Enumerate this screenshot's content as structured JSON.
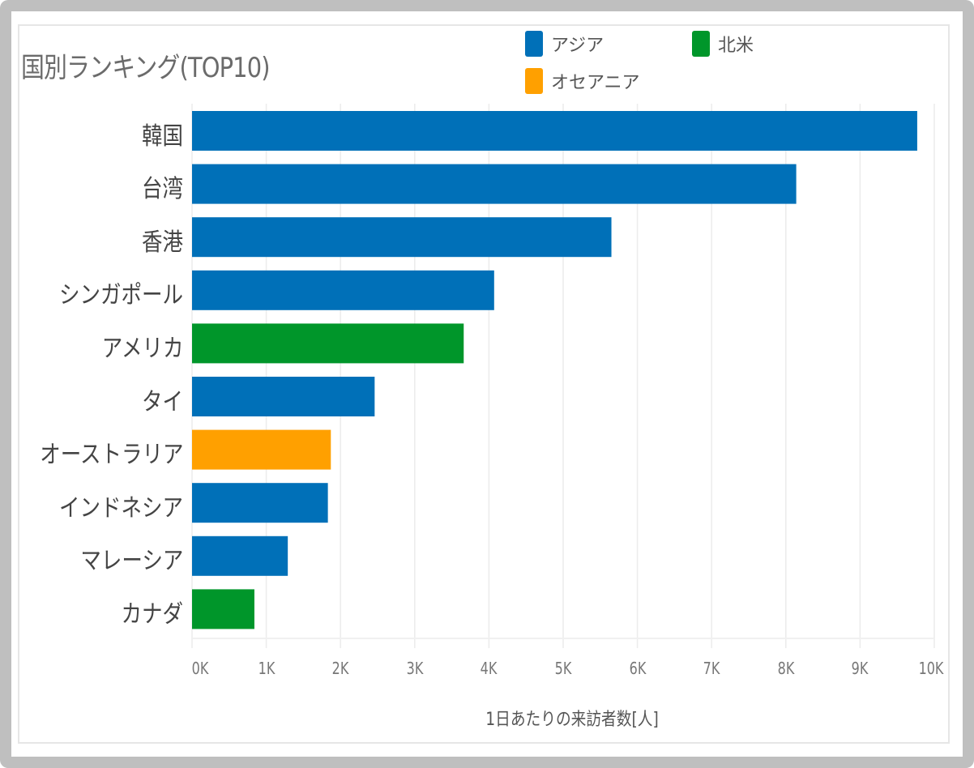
{
  "chart_data": {
    "type": "bar",
    "orientation": "horizontal",
    "title": "国別ランキング(TOP10)",
    "xlabel": "1日あたりの来訪者数[人]",
    "ylabel": "",
    "xlim": [
      0,
      10000
    ],
    "grid": true,
    "legend_position": "top-right",
    "ticks": [
      "0K",
      "1K",
      "2K",
      "3K",
      "4K",
      "5K",
      "6K",
      "7K",
      "8K",
      "9K",
      "10K"
    ],
    "tick_values": [
      0,
      1000,
      2000,
      3000,
      4000,
      5000,
      6000,
      7000,
      8000,
      9000,
      10000
    ],
    "legend": [
      {
        "name": "アジア",
        "color": "#0070b8"
      },
      {
        "name": "北米",
        "color": "#00962a"
      },
      {
        "name": "オセアニア",
        "color": "#ffa000"
      }
    ],
    "categories": [
      "韓国",
      "台湾",
      "香港",
      "シンガポール",
      "アメリカ",
      "タイ",
      "オーストラリア",
      "インドネシア",
      "マレーシア",
      "カナダ"
    ],
    "values": [
      9770,
      8140,
      5650,
      4070,
      3660,
      2460,
      1870,
      1830,
      1290,
      840
    ],
    "regions": [
      "アジア",
      "アジア",
      "アジア",
      "アジア",
      "北米",
      "アジア",
      "オセアニア",
      "アジア",
      "アジア",
      "北米"
    ]
  }
}
